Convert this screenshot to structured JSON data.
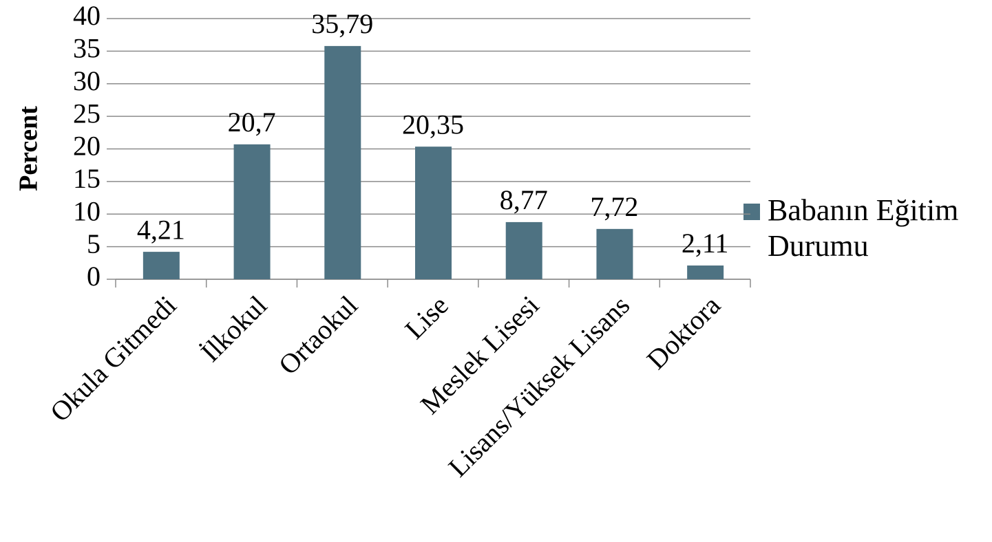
{
  "chart_data": {
    "type": "bar",
    "y_label": "Percent",
    "categories": [
      "Okula Gitmedi",
      "İlkokul",
      "Ortaokul",
      "Lise",
      "Meslek Lisesi",
      "Lisans/Yüksek Lisans",
      "Doktora"
    ],
    "series": [
      {
        "name": "Babanın Eğitim Durumu",
        "color": "#4e7282",
        "values": [
          4.21,
          20.7,
          35.79,
          20.35,
          8.77,
          7.72,
          2.11
        ],
        "value_labels": [
          "4,21",
          "20,7",
          "35,79",
          "20,35",
          "8,77",
          "7,72",
          "2,11"
        ]
      }
    ],
    "ylim": [
      0,
      40
    ],
    "yticks": [
      0,
      5,
      10,
      15,
      20,
      25,
      30,
      35,
      40
    ],
    "grid": true,
    "legend": "right"
  }
}
